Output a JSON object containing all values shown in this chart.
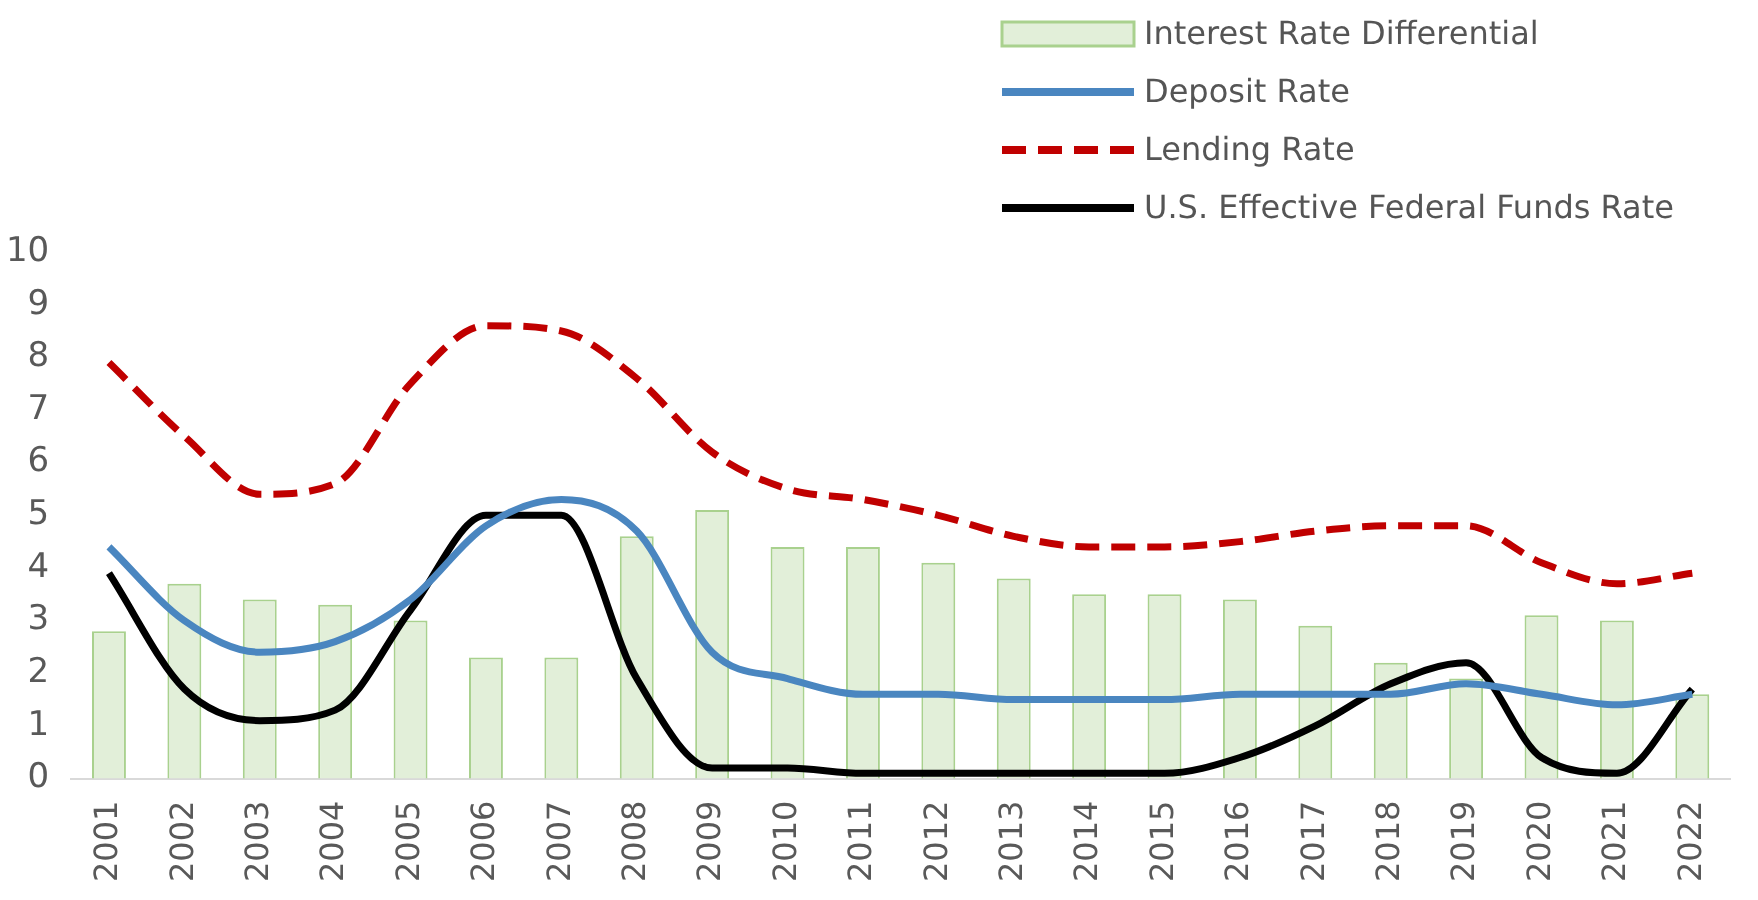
{
  "chart_data": {
    "type": "bar",
    "categories": [
      "2001",
      "2002",
      "2003",
      "2004",
      "2005",
      "2006",
      "2007",
      "2008",
      "2009",
      "2010",
      "2011",
      "2012",
      "2013",
      "2014",
      "2015",
      "2016",
      "2017",
      "2018",
      "2019",
      "2020",
      "2021",
      "2022"
    ],
    "series": [
      {
        "name": "Interest Rate Differential",
        "color": "#e2efd9",
        "values": [
          2.8,
          3.7,
          3.4,
          3.3,
          3.0,
          2.3,
          2.3,
          4.6,
          5.1,
          4.4,
          4.4,
          4.1,
          3.8,
          3.5,
          3.5,
          3.4,
          2.9,
          2.2,
          1.9,
          3.1,
          3.0,
          1.6
        ]
      },
      {
        "name": "Deposit Rate",
        "type": "line",
        "color": "#4a86c0",
        "line_style": "solid",
        "values": [
          4.4,
          3.0,
          2.4,
          2.6,
          3.4,
          4.8,
          5.3,
          4.7,
          2.4,
          1.9,
          1.6,
          1.6,
          1.5,
          1.5,
          1.5,
          1.6,
          1.6,
          1.6,
          1.8,
          1.6,
          1.4,
          1.6
        ]
      },
      {
        "name": "Lending Rate",
        "type": "line",
        "color": "#c00000",
        "line_style": "dashed",
        "values": [
          7.9,
          6.5,
          5.4,
          5.6,
          7.5,
          8.6,
          8.5,
          7.6,
          6.2,
          5.5,
          5.3,
          5.0,
          4.6,
          4.4,
          4.4,
          4.5,
          4.7,
          4.8,
          4.8,
          4.1,
          3.7,
          3.9
        ]
      },
      {
        "name": "U.S. Effective Federal Funds Rate",
        "type": "line",
        "color": "#000000",
        "line_style": "solid",
        "values": [
          3.9,
          1.7,
          1.1,
          1.3,
          3.2,
          5.0,
          5.0,
          1.9,
          0.2,
          0.2,
          0.1,
          0.1,
          0.1,
          0.1,
          0.1,
          0.4,
          1.0,
          1.8,
          2.2,
          0.4,
          0.1,
          1.7
        ]
      }
    ],
    "ylim": [
      0,
      10
    ],
    "yticks": [
      0,
      1,
      2,
      3,
      4,
      5,
      6,
      7,
      8,
      9,
      10
    ],
    "grid": false,
    "legend": "top right",
    "marker": "none"
  }
}
